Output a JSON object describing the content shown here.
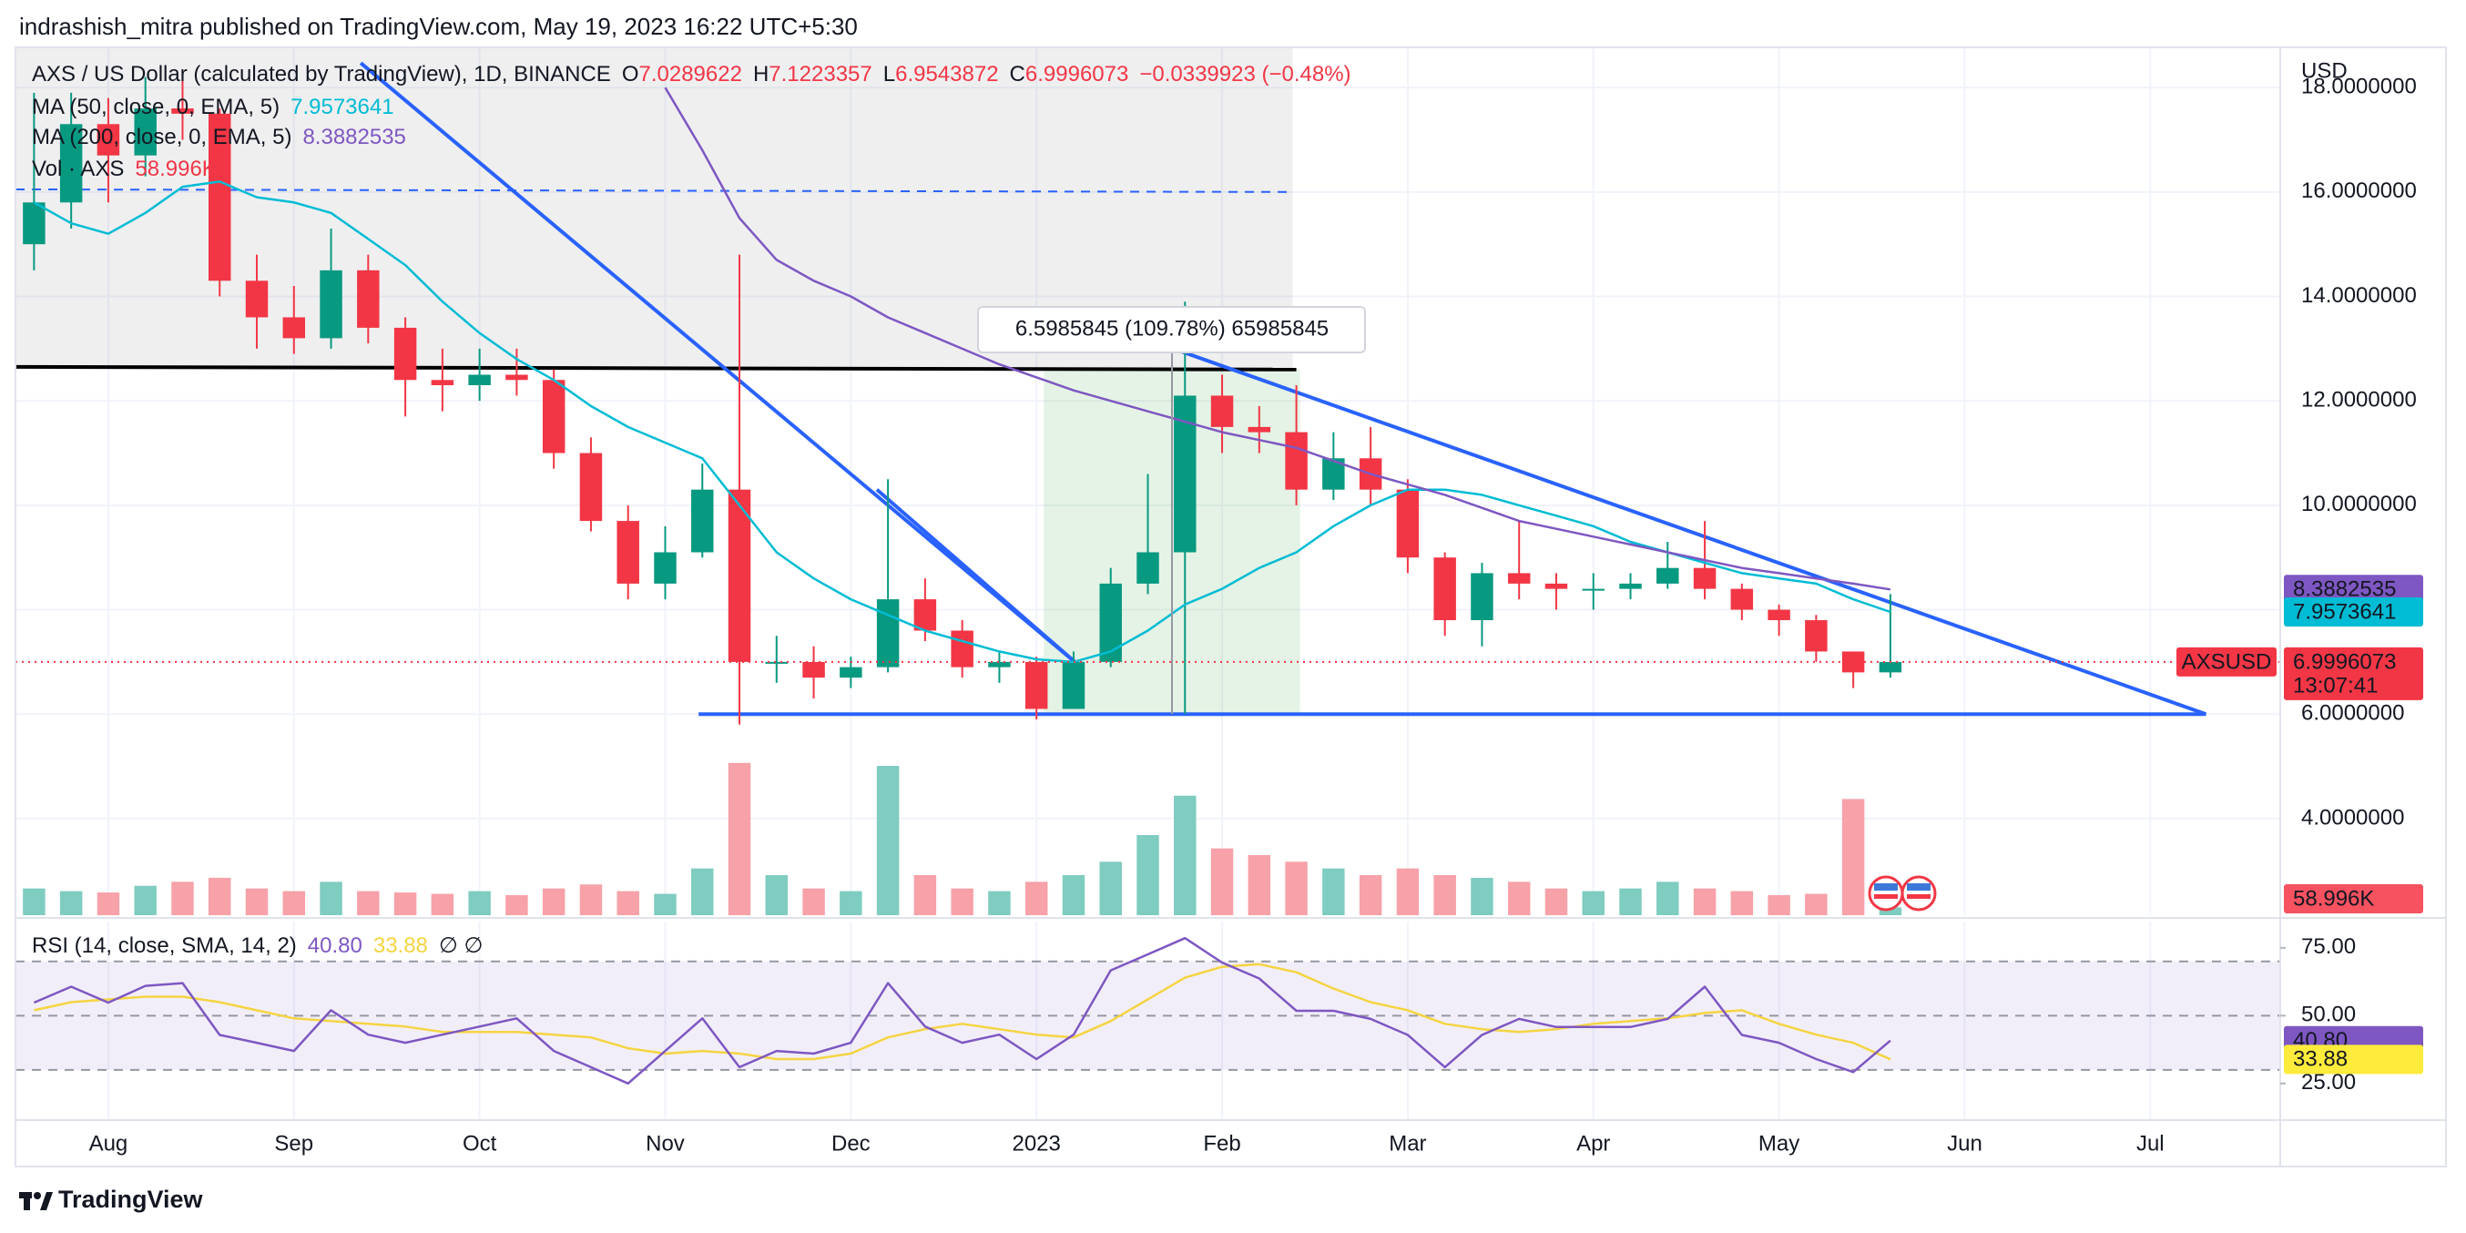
{
  "header": {
    "publisher": "indrashish_mitra published on TradingView.com, May 19, 2023 16:22 UTC+5:30"
  },
  "chart_data": {
    "type": "candlestick",
    "symbol": "AXS / US Dollar (calculated by TradingView), 1D, BINANCE",
    "ohlc_header": {
      "open_label": "O",
      "open": 7.0289622,
      "high_label": "H",
      "high": 7.1223357,
      "low_label": "L",
      "low": 6.9543872,
      "close_label": "C",
      "change": "−0.0339923 (−0.48%)"
    },
    "currency": "USD",
    "categories": [
      null,
      null,
      "Aug",
      null,
      null,
      null,
      null,
      "Sep",
      null,
      null,
      null,
      null,
      "Oct",
      null,
      null,
      null,
      null,
      "Nov",
      null,
      null,
      null,
      null,
      "Dec",
      null,
      null,
      null,
      null,
      "2023",
      null,
      null,
      null,
      null,
      "Feb",
      null,
      null,
      null,
      null,
      "Mar",
      null,
      null,
      null,
      null,
      "Apr",
      null,
      null,
      null,
      null,
      "May",
      null,
      null,
      null,
      null,
      "Jun",
      null,
      null,
      null,
      null,
      "Jul",
      null,
      null,
      null
    ],
    "open": [
      15.0,
      15.8,
      17.3,
      16.7,
      17.6,
      17.5,
      14.3,
      13.6,
      13.2,
      14.5,
      13.4,
      12.4,
      12.3,
      12.5,
      12.4,
      11.0,
      9.7,
      8.5,
      9.1,
      10.3,
      7.0,
      7.0,
      6.7,
      6.9,
      8.2,
      7.6,
      6.9,
      7.0,
      6.1,
      7.0,
      8.5,
      9.1,
      12.1,
      11.5,
      11.4,
      10.3,
      10.9,
      10.3,
      9.0,
      7.8,
      8.7,
      8.5,
      8.4,
      8.4,
      8.5,
      8.8,
      8.4,
      8.0,
      7.8,
      7.2,
      6.8,
      null,
      null,
      null,
      null,
      null,
      null,
      null,
      null,
      null,
      null
    ],
    "high": [
      17.9,
      17.9,
      17.8,
      18.2,
      18.3,
      17.6,
      14.8,
      14.2,
      15.3,
      14.8,
      13.6,
      13.0,
      13.0,
      13.0,
      12.6,
      11.3,
      10.0,
      9.6,
      10.8,
      14.8,
      7.5,
      7.3,
      7.1,
      10.5,
      8.6,
      7.8,
      7.2,
      7.1,
      7.2,
      8.8,
      10.6,
      13.9,
      12.5,
      11.9,
      12.3,
      11.4,
      11.5,
      10.5,
      9.1,
      8.9,
      9.7,
      8.7,
      8.7,
      8.7,
      9.3,
      9.7,
      8.5,
      8.1,
      7.9,
      7.2,
      8.3,
      null,
      null,
      null,
      null,
      null,
      null,
      null,
      null,
      null,
      null
    ],
    "low": [
      14.5,
      15.3,
      15.8,
      16.3,
      17.0,
      14.0,
      13.0,
      12.9,
      13.0,
      13.1,
      11.7,
      11.8,
      12.0,
      12.1,
      10.7,
      9.5,
      8.2,
      8.2,
      9.0,
      5.8,
      6.6,
      6.3,
      6.5,
      6.8,
      7.4,
      6.7,
      6.6,
      5.9,
      6.1,
      6.9,
      8.3,
      6.0,
      11.0,
      11.0,
      10.0,
      10.1,
      10.0,
      8.7,
      7.5,
      7.3,
      8.2,
      8.0,
      8.0,
      8.2,
      8.4,
      8.2,
      7.8,
      7.5,
      7.0,
      6.5,
      6.7,
      null,
      null,
      null,
      null,
      null,
      null,
      null,
      null,
      null,
      null
    ],
    "close": [
      15.8,
      17.3,
      16.7,
      17.6,
      17.5,
      14.3,
      13.6,
      13.2,
      14.5,
      13.4,
      12.4,
      12.3,
      12.5,
      12.4,
      11.0,
      9.7,
      8.5,
      9.1,
      10.3,
      7.0,
      7.0,
      6.7,
      6.9,
      8.2,
      7.6,
      6.9,
      7.0,
      6.1,
      7.0,
      8.5,
      9.1,
      12.1,
      11.5,
      11.4,
      10.3,
      10.9,
      10.3,
      9.0,
      7.8,
      8.7,
      8.5,
      8.4,
      8.4,
      8.5,
      8.8,
      8.4,
      8.0,
      7.8,
      7.2,
      6.8,
      6.9996073,
      null,
      null,
      null,
      null,
      null,
      null,
      null,
      null,
      null,
      null
    ],
    "up_color": "#089981",
    "down_color": "#f23645",
    "ylim": [
      2.15,
      18.77
    ],
    "yticks": [
      {
        "value": 4,
        "label": "4.0000000"
      },
      {
        "value": 6,
        "label": "6.0000000"
      },
      {
        "value": 8,
        "label": "8.0000000"
      },
      {
        "value": 10,
        "label": "10.0000000"
      },
      {
        "value": 12,
        "label": "12.0000000"
      },
      {
        "value": 14,
        "label": "14.0000000"
      },
      {
        "value": 16,
        "label": "16.0000000"
      },
      {
        "value": 18,
        "label": "18.0000000"
      }
    ],
    "grid": true,
    "series": [
      {
        "name": "MA (50, close, 0, EMA, 5)",
        "color": "#00bcd4",
        "values": [
          15.8,
          15.4,
          15.2,
          15.6,
          16.1,
          16.2,
          15.9,
          15.8,
          15.6,
          15.1,
          14.6,
          13.9,
          13.3,
          12.8,
          12.4,
          11.9,
          11.5,
          11.2,
          10.9,
          10.0,
          9.1,
          8.6,
          8.2,
          7.9,
          7.6,
          7.4,
          7.2,
          7.05,
          7.0,
          7.2,
          7.6,
          8.1,
          8.4,
          8.8,
          9.1,
          9.6,
          10.0,
          10.3,
          10.3,
          10.2,
          10.0,
          9.8,
          9.6,
          9.3,
          9.1,
          8.9,
          8.7,
          8.6,
          8.5,
          8.2,
          7.9573641,
          null,
          null,
          null,
          null,
          null,
          null,
          null,
          null,
          null,
          null
        ]
      },
      {
        "name": "MA (200, close, 0, EMA, 5)",
        "color": "#7e57c2",
        "values": [
          null,
          null,
          null,
          null,
          null,
          null,
          null,
          null,
          null,
          null,
          null,
          null,
          null,
          null,
          null,
          null,
          null,
          18.0,
          16.8,
          15.5,
          14.7,
          14.3,
          14.0,
          13.6,
          13.3,
          13.0,
          12.7,
          12.45,
          12.2,
          12.0,
          11.8,
          11.6,
          11.4,
          11.25,
          11.1,
          10.85,
          10.6,
          10.4,
          10.2,
          9.95,
          9.7,
          9.55,
          9.4,
          9.25,
          9.1,
          8.95,
          8.8,
          8.7,
          8.6,
          8.5,
          8.3882535,
          null,
          null,
          null,
          null,
          null,
          null,
          null,
          null,
          null,
          null
        ]
      }
    ],
    "volume": {
      "name": "Vol · AXS",
      "up_color": "#7fccc0",
      "down_color": "#f7a1a8",
      "ylim": [
        0,
        1800
      ],
      "values": [
        200,
        180,
        170,
        220,
        250,
        280,
        200,
        180,
        250,
        180,
        170,
        160,
        180,
        150,
        200,
        230,
        180,
        160,
        350,
        1140,
        300,
        200,
        180,
        1118,
        300,
        200,
        180,
        250,
        300,
        400,
        600,
        895,
        500,
        450,
        400,
        350,
        300,
        350,
        300,
        280,
        250,
        200,
        180,
        200,
        250,
        200,
        180,
        150,
        160,
        870,
        58.996,
        null,
        null,
        null,
        null,
        null,
        null,
        null,
        null,
        null,
        null
      ],
      "last_label": "58.996K",
      "badge_color": "#f7525f"
    },
    "symbol_badge": "AXSUSD",
    "countdown": "13:07:41",
    "price_line_color": "#f23645",
    "rsi": {
      "name": "RSI (14, close, SMA, 14, 2)",
      "color": "#7e57c2",
      "values": [
        54.8,
        60.7,
        54.8,
        61,
        62,
        42.9,
        40,
        37,
        52,
        43,
        40,
        43,
        46,
        49,
        37,
        31,
        25,
        37,
        49,
        31,
        37,
        36,
        40,
        62,
        46,
        40,
        43,
        34,
        43,
        66.7,
        72.6,
        78.6,
        69.6,
        63.7,
        51.8,
        51.8,
        48.8,
        42.9,
        31,
        42.9,
        48.8,
        45.8,
        45.8,
        45.8,
        48.8,
        60.7,
        42.9,
        40,
        34,
        29.2,
        40.8,
        null,
        null,
        null,
        null,
        null,
        null,
        null,
        null,
        null,
        null
      ],
      "last_label": "40.80",
      "ma": {
        "color": "#f5d442",
        "badge_color": "#ffeb3b",
        "values": [
          52,
          55,
          56,
          57,
          57,
          55,
          52,
          49,
          48,
          47,
          46,
          44,
          44,
          44,
          43,
          42,
          38,
          36,
          37,
          36,
          34,
          34,
          36,
          42,
          45,
          47,
          45,
          43,
          42,
          48,
          56,
          64,
          68,
          69,
          66,
          60,
          55,
          52,
          47,
          45,
          44,
          45,
          47,
          48,
          49,
          51,
          52,
          47,
          43,
          40,
          33.88,
          null,
          null,
          null,
          null,
          null,
          null,
          null,
          null,
          null,
          null
        ]
      },
      "extra": "∅ ∅",
      "ylim": [
        11.5,
        84.7
      ],
      "yticks": [
        {
          "value": 25,
          "label": "25.00"
        },
        {
          "value": 50,
          "label": "50.00"
        },
        {
          "value": 75,
          "label": "75.00"
        }
      ],
      "levels": [
        70,
        50,
        30
      ]
    },
    "trend_lines": [
      {
        "from": [
          0,
          12.65
        ],
        "to": [
          34.5,
          12.6
        ],
        "color": "#000000"
      },
      {
        "from": [
          18.4,
          6.0
        ],
        "to": [
          59.0,
          6.0
        ],
        "color": "#2962ff"
      },
      {
        "from": [
          9.3,
          18.47
        ],
        "to": [
          28.6,
          6.96
        ],
        "color": "#2962ff"
      },
      {
        "from": [
          23.2,
          10.3
        ],
        "to": [
          28.6,
          6.96
        ],
        "color": "#2962ff"
      },
      {
        "from": [
          29.2,
          13.5
        ],
        "to": [
          59.0,
          6.0
        ],
        "color": "#2962ff"
      },
      {
        "from": [
          0,
          16.05
        ],
        "to": [
          34.3,
          16.0
        ],
        "color": "#2962ff",
        "dashed": true
      }
    ],
    "rectangles": [
      {
        "from": [
          0,
          12.6
        ],
        "to": [
          34.4,
          18.77
        ],
        "color": "rgba(120,123,134,0.12)"
      },
      {
        "from": [
          27.7,
          6.0
        ],
        "to": [
          34.6,
          12.6
        ],
        "color": "rgba(76,175,80,0.15)"
      }
    ],
    "measure_label": "6.5985845 (109.78%) 65985845"
  },
  "footer": {
    "brand": "TradingView"
  }
}
